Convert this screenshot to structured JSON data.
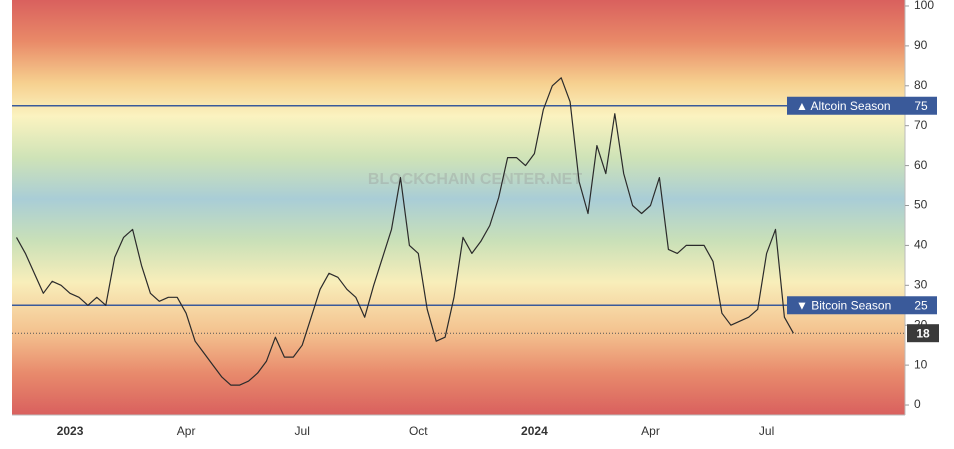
{
  "chart_data": {
    "type": "line",
    "watermark": "BLOCKCHAIN CENTER.NET",
    "categories": [
      null,
      null,
      null,
      null,
      null,
      null,
      "2023",
      null,
      null,
      null,
      null,
      null,
      null,
      null,
      null,
      null,
      null,
      null,
      null,
      "Apr",
      null,
      null,
      null,
      null,
      null,
      null,
      null,
      null,
      null,
      null,
      null,
      null,
      "Jul",
      null,
      null,
      null,
      null,
      null,
      null,
      null,
      null,
      null,
      null,
      null,
      null,
      "Oct",
      null,
      null,
      null,
      null,
      null,
      null,
      null,
      null,
      null,
      null,
      null,
      null,
      "2024",
      null,
      null,
      null,
      null,
      null,
      null,
      null,
      null,
      null,
      null,
      null,
      null,
      "Apr",
      null,
      null,
      null,
      null,
      null,
      null,
      null,
      null,
      null,
      null,
      null,
      null,
      "Jul",
      null,
      null,
      null,
      null,
      null,
      null,
      null,
      null,
      null,
      null,
      null,
      null,
      null,
      null,
      null
    ],
    "values": [
      42,
      38,
      33,
      28,
      31,
      30,
      28,
      27,
      25,
      27,
      25,
      37,
      42,
      44,
      35,
      28,
      26,
      27,
      27,
      23,
      16,
      13,
      10,
      7,
      5,
      5,
      6,
      8,
      11,
      17,
      12,
      12,
      15,
      22,
      29,
      33,
      32,
      29,
      27,
      22,
      30,
      37,
      44,
      57,
      40,
      38,
      24,
      16,
      17,
      27,
      42,
      38,
      41,
      45,
      52,
      62,
      62,
      60,
      63,
      74,
      80,
      82,
      76,
      56,
      48,
      65,
      58,
      73,
      58,
      50,
      48,
      50,
      57,
      39,
      38,
      40,
      40,
      40,
      36,
      23,
      20,
      21,
      22,
      24,
      38,
      44,
      22,
      18,
      null,
      null,
      null,
      null,
      null,
      null,
      null,
      null,
      null,
      null,
      null,
      null
    ],
    "color": "#2b2b2b",
    "ylim": [
      -2.5,
      101.5
    ],
    "yticks": [
      0,
      10,
      20,
      30,
      40,
      50,
      60,
      70,
      80,
      90,
      100
    ],
    "reference_lines": [
      {
        "label": "▲ Altcoin Season",
        "value": 75,
        "color": "#3a5a9a"
      },
      {
        "label": "▼ Bitcoin Season",
        "value": 25,
        "color": "#3a5a9a"
      }
    ],
    "current_value": 18
  }
}
